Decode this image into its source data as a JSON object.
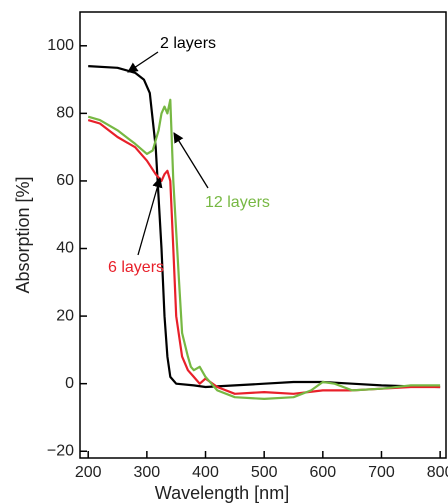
{
  "chart_data": {
    "type": "line",
    "x_label": "Wavelength [nm]",
    "y_label": "Absorption [%]",
    "xlim": [
      186,
      810
    ],
    "ylim": [
      -22,
      110
    ],
    "xticks": [
      200,
      300,
      400,
      500,
      600,
      700,
      800
    ],
    "yticks": [
      {
        "value": -20,
        "label": "−20"
      },
      0,
      20,
      40,
      60,
      80,
      100
    ],
    "series": [
      {
        "name": "2 layers",
        "color": "#000000",
        "x": [
          200,
          250,
          280,
          295,
          305,
          315,
          320,
          325,
          330,
          335,
          340,
          350,
          380,
          400,
          450,
          500,
          550,
          600,
          650,
          700,
          750,
          800
        ],
        "values": [
          94,
          93.5,
          92,
          90,
          86,
          70,
          55,
          40,
          20,
          8,
          2,
          0,
          -0.5,
          -1,
          -0.5,
          0,
          0.5,
          0.5,
          0,
          -0.5,
          -0.8,
          -1
        ]
      },
      {
        "name": "6 layers",
        "color": "#e8202a",
        "x": [
          200,
          220,
          250,
          280,
          300,
          315,
          325,
          330,
          335,
          340,
          345,
          350,
          360,
          370,
          380,
          390,
          400,
          420,
          450,
          500,
          550,
          600,
          650,
          700,
          750,
          800
        ],
        "values": [
          78,
          77,
          73,
          70,
          66,
          62,
          60,
          62,
          63,
          60,
          40,
          20,
          8,
          4,
          2,
          0,
          1.5,
          -1,
          -3,
          -2.5,
          -3,
          -2,
          -2,
          -1.5,
          -1,
          -1
        ]
      },
      {
        "name": "12 layers",
        "color": "#77b843",
        "x": [
          200,
          220,
          250,
          280,
          300,
          310,
          320,
          325,
          330,
          335,
          340,
          345,
          350,
          355,
          360,
          370,
          375,
          380,
          390,
          400,
          420,
          450,
          500,
          550,
          580,
          600,
          620,
          650,
          700,
          750,
          800
        ],
        "values": [
          79,
          78,
          75,
          71,
          68,
          69,
          75,
          80,
          82,
          80,
          84,
          60,
          45,
          30,
          15,
          8,
          5,
          4,
          5,
          2,
          -2,
          -4,
          -4.5,
          -4,
          -2,
          0.5,
          0,
          -2,
          -1.5,
          -0.5,
          -0.5
        ]
      }
    ]
  }
}
